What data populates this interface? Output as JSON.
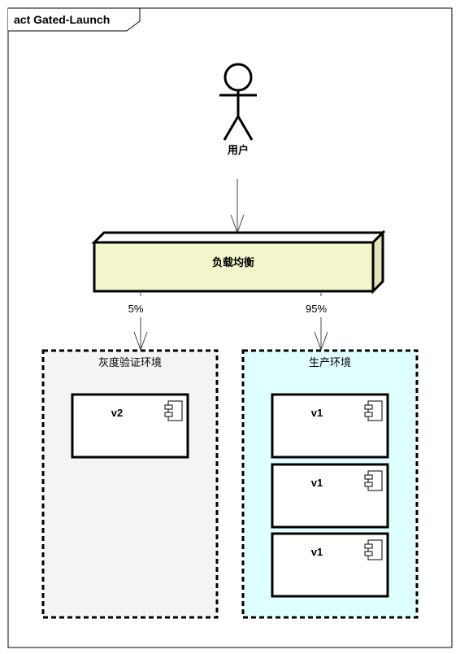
{
  "frame": {
    "title": "act Gated-Launch"
  },
  "actor": {
    "label": "用户"
  },
  "load_balancer": {
    "label": "负载均衡"
  },
  "routes": [
    {
      "label": "5%"
    },
    {
      "label": "95%"
    }
  ],
  "gray_env": {
    "title": "灰度验证环境",
    "fill": "#f4f4f4",
    "components": [
      {
        "label": "v2"
      }
    ]
  },
  "prod_env": {
    "title": "生产环境",
    "fill": "#e0ffff",
    "components": [
      {
        "label": "v1"
      },
      {
        "label": "v1"
      },
      {
        "label": "v1"
      }
    ]
  },
  "colors": {
    "node_front": "#f5f5cc",
    "node_top": "#ffffff",
    "node_side": "#e4e4bc",
    "stroke": "#000000"
  }
}
